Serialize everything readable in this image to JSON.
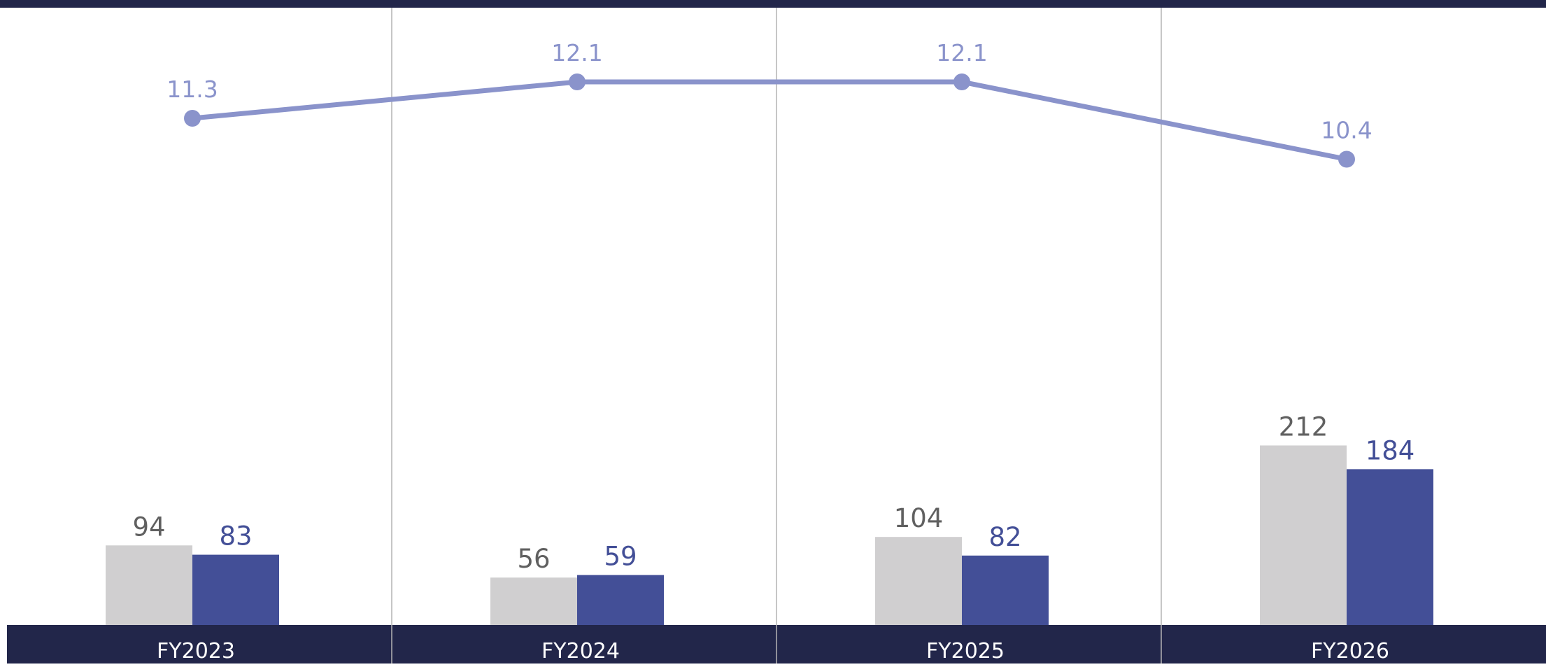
{
  "chart_data": {
    "type": "bar",
    "categories": [
      "FY2023",
      "FY2024",
      "FY2025",
      "FY2026"
    ],
    "series": [
      {
        "values": [
          94,
          56,
          104,
          212
        ],
        "color": "#d0cfd0",
        "label_color": "#606060"
      },
      {
        "values": [
          83,
          59,
          82,
          184
        ],
        "color": "#434f97",
        "label_color": "#434f97"
      }
    ],
    "line_series": {
      "type": "line",
      "values": [
        11.3,
        12.1,
        12.1,
        10.4
      ],
      "color": "#8a93cb"
    },
    "y_axis_bars": {
      "min": 0,
      "max": 240
    },
    "y_axis_line": {
      "min": 0,
      "max": 14
    },
    "grid": false,
    "legend": "none",
    "colors": {
      "band": "#22264a",
      "separator": "#b4b4b4"
    }
  }
}
